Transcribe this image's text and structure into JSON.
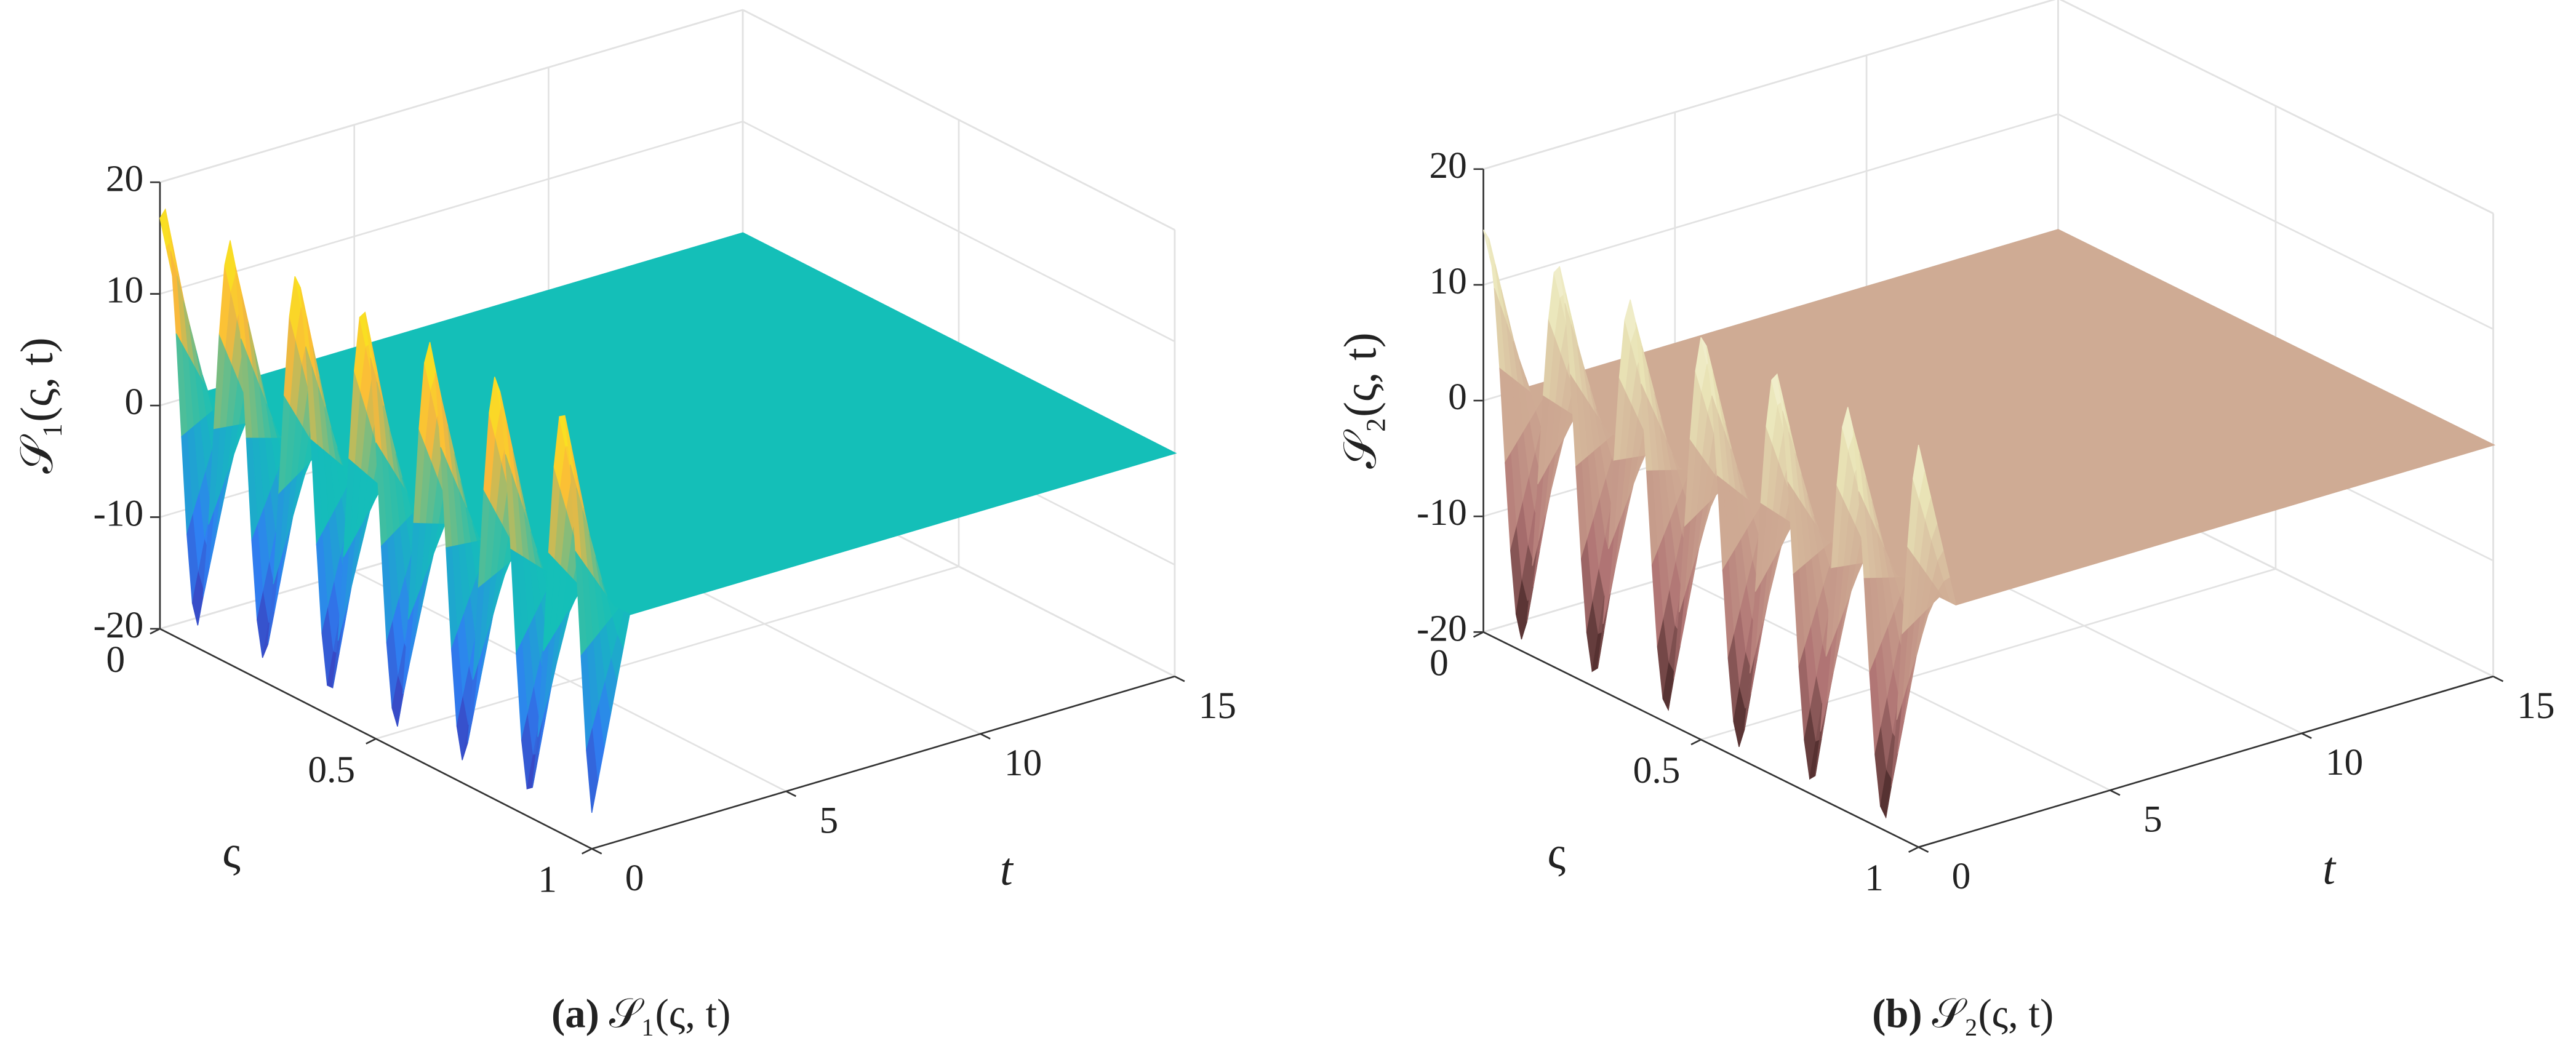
{
  "chart_data": [
    {
      "type": "surface",
      "caption_label": "(a)",
      "caption": "𝒮₁(ς, t)",
      "xlabel": "ς",
      "ylabel": "t",
      "zlabel": "𝒮₁(ς, t)",
      "xlim": [
        0,
        1
      ],
      "xticks": [
        0,
        0.5,
        1
      ],
      "ylim": [
        0,
        15
      ],
      "yticks": [
        0,
        5,
        10,
        15
      ],
      "zlim": [
        -20,
        20
      ],
      "zticks": [
        -20,
        -10,
        0,
        10,
        20
      ],
      "colormap": [
        "#3e26a8",
        "#2f80f2",
        "#14bfb8",
        "#fbb93a",
        "#f8fa12"
      ],
      "grid": true
    },
    {
      "type": "surface",
      "caption_label": "(b)",
      "caption": "𝒮₂(ς, t)",
      "xlabel": "ς",
      "ylabel": "t",
      "zlabel": "𝒮₂(ς, t)",
      "xlim": [
        0,
        1
      ],
      "xticks": [
        0,
        0.5,
        1
      ],
      "ylim": [
        0,
        15
      ],
      "yticks": [
        0,
        5,
        10,
        15
      ],
      "zlim": [
        -20,
        20
      ],
      "zticks": [
        -20,
        -10,
        0,
        10,
        20
      ],
      "colormap": [
        "#2e1414",
        "#b07474",
        "#cfab94",
        "#e9e4b6",
        "#fffff2"
      ],
      "grid": true
    }
  ]
}
